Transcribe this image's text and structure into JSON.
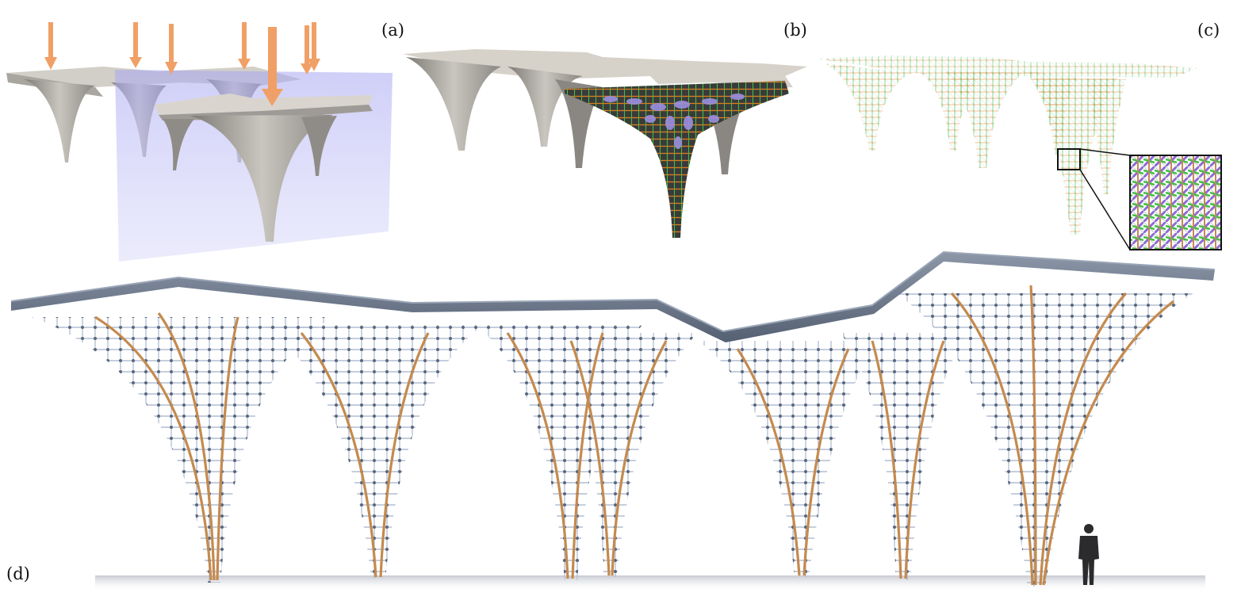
{
  "panels": {
    "a": {
      "label": "(a)"
    },
    "b": {
      "label": "(b)"
    },
    "c": {
      "label": "(c)"
    },
    "d": {
      "label": "(d)"
    }
  },
  "colors": {
    "surface": "#b9b6b0",
    "surface_top": "#d8d4cc",
    "load_arrow": "#f0a066",
    "section_plane": "#9f9ef0",
    "timber": "#c48a4e",
    "steel": "#b9c6da",
    "roof": "#6e7a8c",
    "node": "#59657a",
    "stress_green": "#3fbf3f",
    "stress_orange": "#e07a1f",
    "stress_purple": "#8e6bd6"
  }
}
